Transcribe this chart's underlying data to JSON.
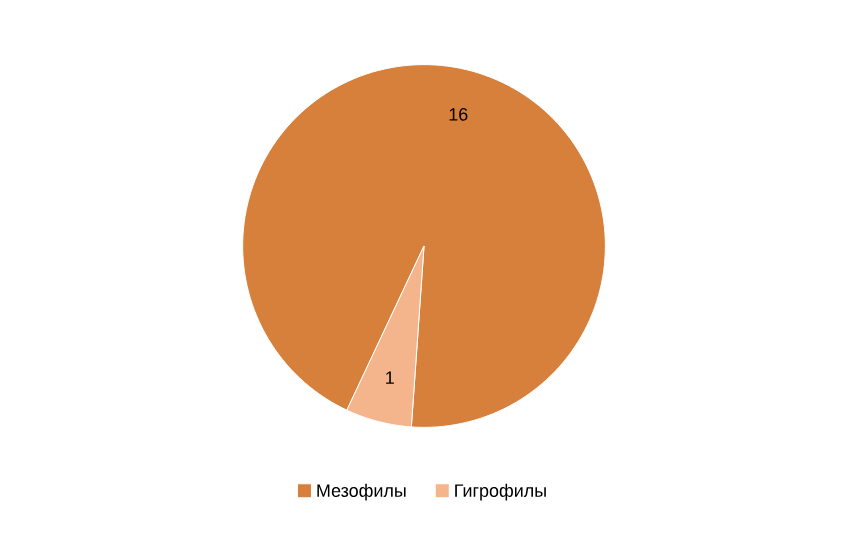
{
  "chart_data": {
    "type": "pie",
    "categories": [
      "Мезофилы",
      "Гигрофилы"
    ],
    "values": [
      16,
      1
    ],
    "colors": [
      "#d6803b",
      "#f4b48c"
    ],
    "data_labels": true,
    "legend": "bottom"
  }
}
